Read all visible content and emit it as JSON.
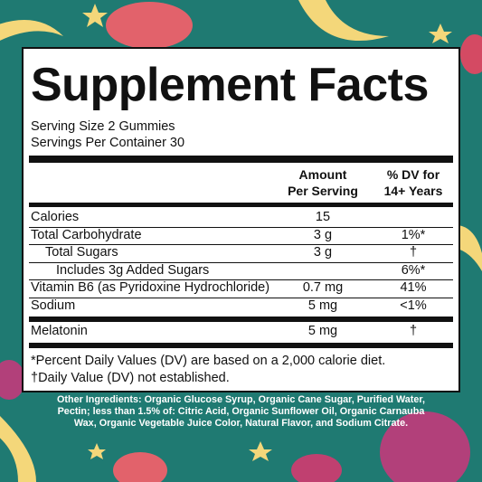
{
  "panel": {
    "title": "Supplement Facts",
    "serving_size": "Serving Size 2 Gummies",
    "servings_per_container": "Servings Per Container 30",
    "header": {
      "amount": [
        "Amount",
        "Per Serving"
      ],
      "dv": [
        "% DV for",
        "14+ Years"
      ]
    },
    "rows": [
      [
        "Calories",
        "15",
        ""
      ],
      [
        "Total Carbohydrate",
        "3 g",
        "1%*"
      ],
      [
        "Total Sugars",
        "3 g",
        "†"
      ],
      [
        "Includes 3g Added Sugars",
        "",
        "6%*"
      ],
      [
        "Vitamin B6 (as Pyridoxine Hydrochloride)",
        "0.7 mg",
        "41%"
      ],
      [
        "Sodium",
        "5 mg",
        "<1%"
      ],
      [
        "Melatonin",
        "5 mg",
        "†"
      ]
    ],
    "footnotes": [
      "*Percent Daily Values (DV) are based on a 2,000 calorie diet.",
      "†Daily Value (DV) not established."
    ]
  },
  "other_ingredients": [
    "Other Ingredients: Organic Glucose Syrup, Organic Cane Sugar, Purified Water,",
    "Pectin; less than 1.5% of: Citric Acid, Organic Sunflower Oil, Organic Carnauba",
    "Wax, Organic Vegetable Juice Color, Natural Flavor, and Sodium Citrate."
  ]
}
